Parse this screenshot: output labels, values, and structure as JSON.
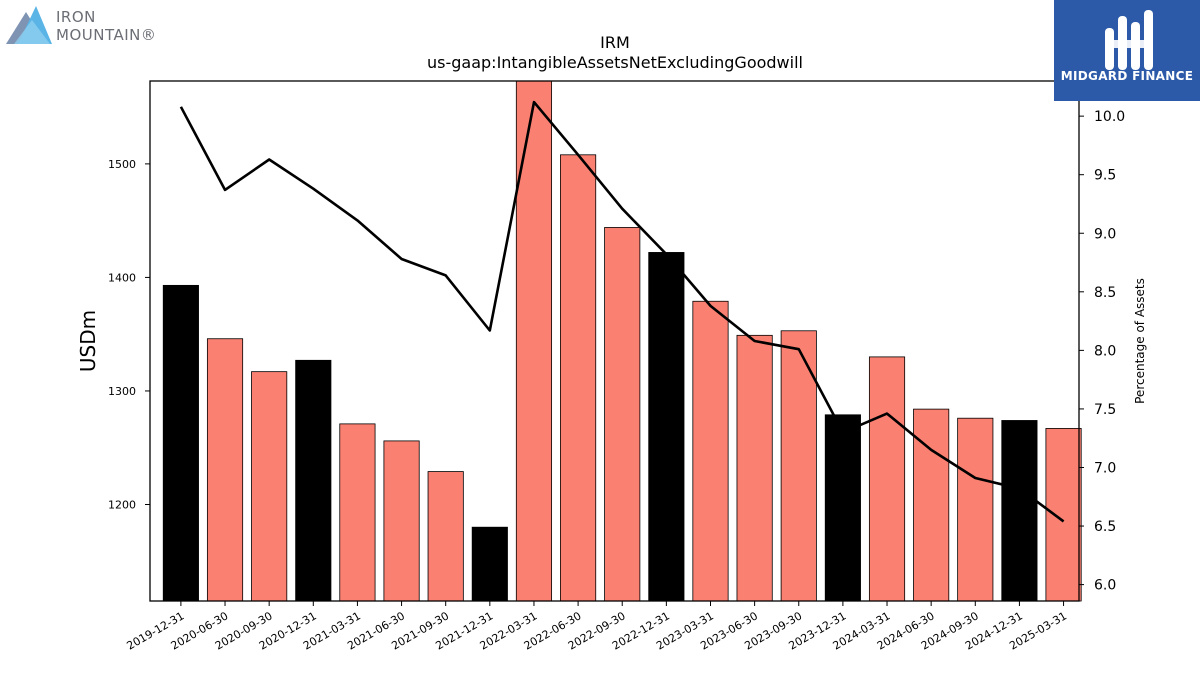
{
  "logos": {
    "left": {
      "text": "IRON\nMOUNTAIN®"
    },
    "right": {
      "text": "MIDGARD FINANCE"
    }
  },
  "chart_data": {
    "type": "bar",
    "title": "IRM",
    "subtitle": "us-gaap:IntangibleAssetsNetExcludingGoodwill",
    "ylabel": "USDm",
    "y2label": "Percentage of Assets",
    "ylim": [
      1115,
      1573
    ],
    "y2lim": [
      5.86,
      10.3
    ],
    "yticks": [
      1200,
      1300,
      1400,
      1500
    ],
    "y2ticks": [
      6.0,
      6.5,
      7.0,
      7.5,
      8.0,
      8.5,
      9.0,
      9.5,
      10.0
    ],
    "categories": [
      "2019-12-31",
      "2020-06-30",
      "2020-09-30",
      "2020-12-31",
      "2021-03-31",
      "2021-06-30",
      "2021-09-30",
      "2021-12-31",
      "2022-03-31",
      "2022-06-30",
      "2022-09-30",
      "2022-12-31",
      "2023-03-31",
      "2023-06-30",
      "2023-09-30",
      "2023-12-31",
      "2024-03-31",
      "2024-06-30",
      "2024-09-30",
      "2024-12-31",
      "2025-03-31"
    ],
    "series": [
      {
        "type": "bar",
        "values": [
          1393,
          1346,
          1317,
          1327,
          1271,
          1256,
          1229,
          1180,
          1573,
          1508,
          1444,
          1422,
          1379,
          1349,
          1353,
          1279,
          1330,
          1284,
          1276,
          1274,
          1267
        ]
      },
      {
        "type": "line",
        "axis": "right",
        "values": [
          10.08,
          9.37,
          9.63,
          9.38,
          9.11,
          8.78,
          8.64,
          8.17,
          10.12,
          9.67,
          9.21,
          8.82,
          8.38,
          8.08,
          8.01,
          7.3,
          7.46,
          7.15,
          6.91,
          6.82,
          6.54
        ]
      }
    ],
    "bar_colors": {
      "annual": "#000000",
      "quarterly": "#fa8072"
    },
    "annual_flags": [
      true,
      false,
      false,
      true,
      false,
      false,
      false,
      true,
      false,
      false,
      false,
      true,
      false,
      false,
      false,
      true,
      false,
      false,
      false,
      true,
      false
    ],
    "line_color": "#000000",
    "grid": false
  }
}
